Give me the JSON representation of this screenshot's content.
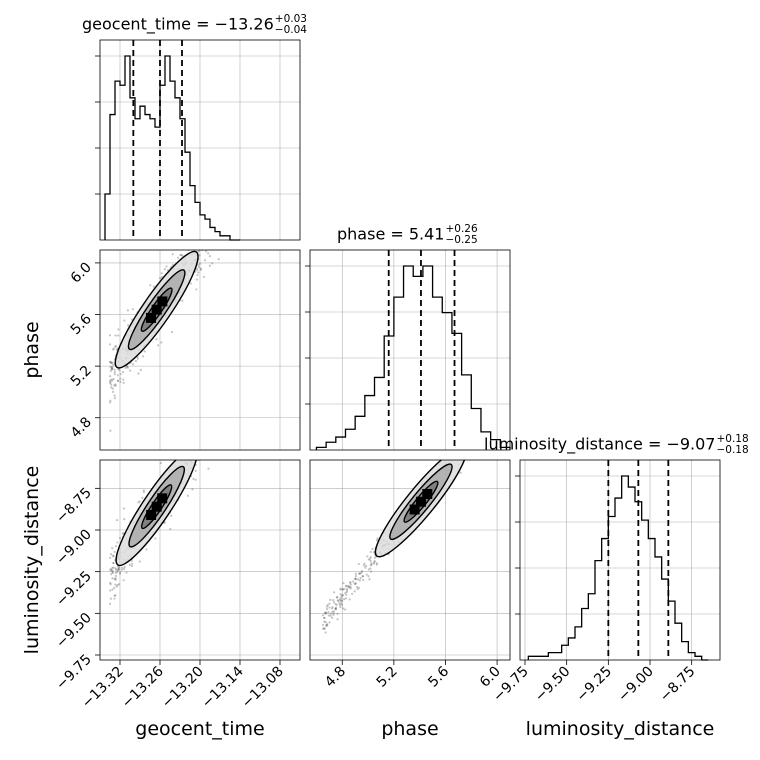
{
  "chart_data": {
    "type": "corner",
    "parameters": [
      "geocent_time",
      "phase",
      "luminosity_distance"
    ],
    "xlabels": [
      "geocent_time",
      "phase",
      "luminosity_distance"
    ],
    "ylabels": [
      "phase",
      "luminosity_distance"
    ],
    "titles": [
      {
        "param": "geocent_time",
        "text": "geocent_time = −13.26",
        "plus": "+0.03",
        "minus": "−0.04"
      },
      {
        "param": "phase",
        "text": "phase = 5.41",
        "plus": "+0.26",
        "minus": "−0.25"
      },
      {
        "param": "luminosity_distance",
        "text": "luminosity_distance = −9.07",
        "plus": "+0.18",
        "minus": "−0.18"
      }
    ],
    "axes": {
      "geocent_time": {
        "range": [
          -13.35,
          -13.05
        ],
        "ticks": [
          -13.32,
          -13.26,
          -13.2,
          -13.14,
          -13.08
        ],
        "tick_labels": [
          "−13.32",
          "−13.26",
          "−13.20",
          "−13.14",
          "−13.08"
        ]
      },
      "phase": {
        "range": [
          4.55,
          6.1
        ],
        "ticks": [
          4.8,
          5.2,
          5.6,
          6.0
        ],
        "tick_labels": [
          "4.8",
          "5.2",
          "5.6",
          "6.0"
        ]
      },
      "luminosity_distance": {
        "range": [
          -9.78,
          -8.58
        ],
        "ticks": [
          -9.75,
          -9.5,
          -9.25,
          -9.0,
          -8.75
        ],
        "tick_labels": [
          "−9.75",
          "−9.50",
          "−9.25",
          "−9.00",
          "−8.75"
        ]
      }
    },
    "histograms": {
      "geocent_time": {
        "bins": [
          -13.3425,
          -13.335,
          -13.3275,
          -13.32,
          -13.3125,
          -13.305,
          -13.2975,
          -13.29,
          -13.2825,
          -13.275,
          -13.2675,
          -13.26,
          -13.2525,
          -13.245,
          -13.2375,
          -13.23,
          -13.2225,
          -13.215,
          -13.2075,
          -13.2,
          -13.1925,
          -13.185,
          -13.1775,
          -13.17,
          -13.1625,
          -13.155,
          -13.1475,
          -13.14
        ],
        "counts": [
          11,
          30,
          38,
          37,
          44,
          34,
          29,
          32,
          30,
          29,
          27,
          37,
          44,
          38,
          34,
          29,
          21,
          13,
          9,
          6,
          5,
          3,
          2,
          1,
          1,
          0,
          0
        ],
        "quantiles": [
          -13.3,
          -13.26,
          -13.227
        ]
      },
      "phase": {
        "bins": [
          4.6,
          4.675,
          4.75,
          4.825,
          4.9,
          4.975,
          5.05,
          5.125,
          5.2,
          5.275,
          5.35,
          5.425,
          5.5,
          5.575,
          5.65,
          5.725,
          5.8,
          5.875,
          5.95,
          6.025,
          6.1
        ],
        "counts": [
          1,
          3,
          5,
          8,
          13,
          21,
          28,
          44,
          59,
          71,
          67,
          71,
          59,
          53,
          45,
          29,
          16,
          7,
          4,
          1
        ],
        "quantiles": [
          5.16,
          5.41,
          5.67
        ]
      },
      "luminosity_distance": {
        "bins": [
          -9.73,
          -9.69,
          -9.65,
          -9.61,
          -9.57,
          -9.53,
          -9.49,
          -9.45,
          -9.41,
          -9.37,
          -9.33,
          -9.29,
          -9.25,
          -9.21,
          -9.17,
          -9.13,
          -9.09,
          -9.05,
          -9.01,
          -8.97,
          -8.93,
          -8.89,
          -8.85,
          -8.81,
          -8.77,
          -8.73,
          -8.69,
          -8.65
        ],
        "counts": [
          1,
          1,
          1,
          2,
          2,
          4,
          6,
          9,
          14,
          18,
          27,
          33,
          39,
          44,
          50,
          47,
          43,
          38,
          33,
          28,
          22,
          16,
          10,
          5,
          2,
          1,
          0
        ],
        "quantiles": [
          -9.25,
          -9.07,
          -8.89
        ]
      }
    },
    "scatter_2d": [
      {
        "x": "geocent_time",
        "y": "phase",
        "trend": {
          "x0": -13.33,
          "y0": 5.15,
          "slope": 7.5
        },
        "spread": 0.12
      },
      {
        "x": "geocent_time",
        "y": "luminosity_distance",
        "trend": {
          "x0": -13.33,
          "y0": -9.25,
          "slope": 6.0
        },
        "spread": 0.09
      },
      {
        "x": "phase",
        "y": "luminosity_distance",
        "trend": {
          "x0": 4.6,
          "y0": -9.6,
          "slope": 0.95
        },
        "spread": 0.045
      }
    ]
  }
}
